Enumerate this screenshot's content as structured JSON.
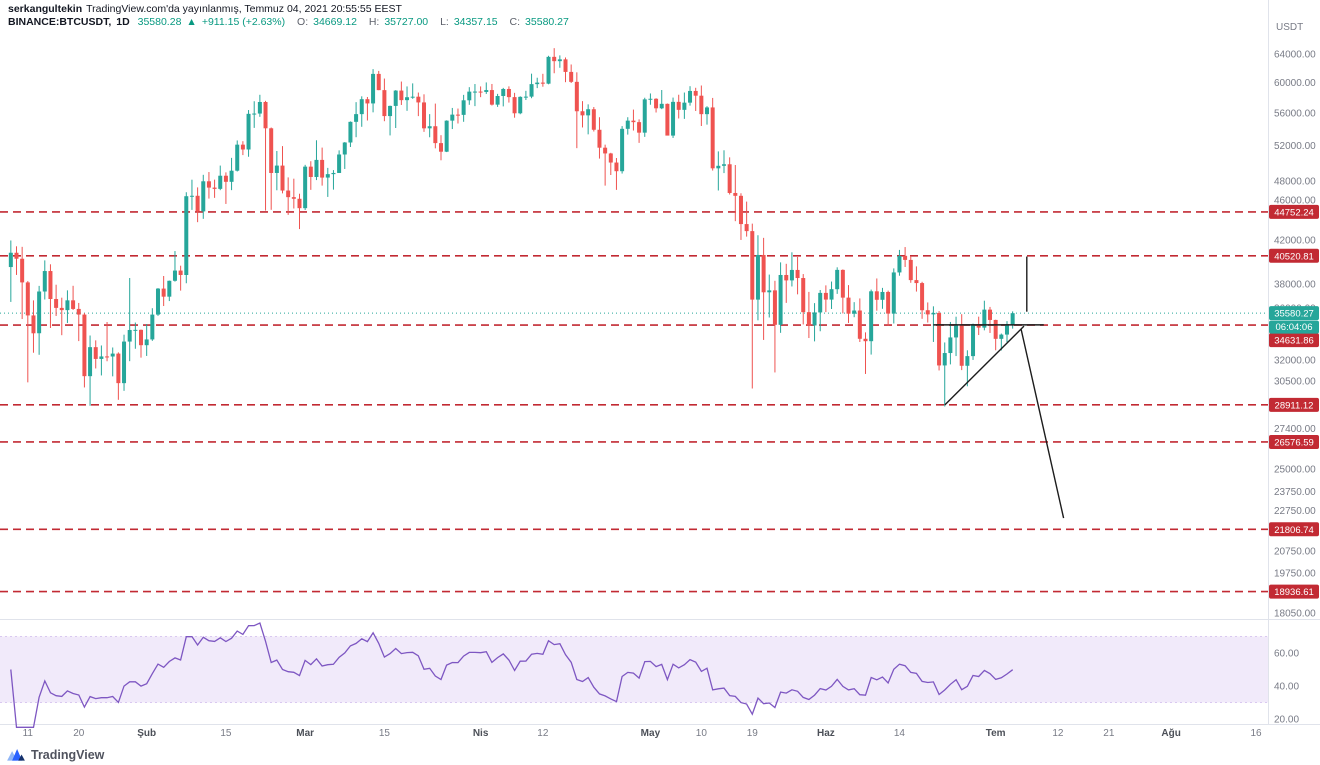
{
  "header": {
    "author": "serkangultekin",
    "published": "TradingView.com'da yayınlanmış, Temmuz 04, 2021 20:55:55 EEST",
    "symbol": "BINANCE:BTCUSDT,",
    "interval": "1D",
    "last_price": "35580.28",
    "arrow": "▲",
    "change": "+911.15 (+2.63%)",
    "ohlc": [
      {
        "label": "O:",
        "value": "34669.12"
      },
      {
        "label": "H:",
        "value": "35727.00"
      },
      {
        "label": "L:",
        "value": "34357.15"
      },
      {
        "label": "C:",
        "value": "35580.27"
      }
    ]
  },
  "footer": {
    "brand": "TradingView"
  },
  "colors": {
    "up": "#26a69a",
    "down": "#ef5350",
    "sr_red": "#c22a33",
    "accent": "#26a69a",
    "rsi": "#7e57c2",
    "rsi_band": "#f1eafa",
    "rsi_band_edge": "#d9c8f0",
    "green_text": "#089981",
    "dark_text": "#131722",
    "muted_text": "#787b86",
    "drawing": "#1c1c1c",
    "grid": "#e0e3eb",
    "brand": "#2962ff"
  },
  "chart_data": {
    "type": "candlestick",
    "symbol": "BINANCE:BTCUSDT",
    "interval": "1D",
    "start_date": "2021-01-08",
    "yscale": "log",
    "ylabel_unit": "USDT",
    "ylim": [
      17900,
      70000
    ],
    "ohlc": [
      [
        39500,
        41950,
        36500,
        40800
      ],
      [
        40800,
        41400,
        38800,
        40250
      ],
      [
        40250,
        41350,
        35111,
        38150
      ],
      [
        38150,
        38264,
        30420,
        35400
      ],
      [
        35400,
        36628,
        32531,
        33995
      ],
      [
        34000,
        37850,
        32380,
        37371
      ],
      [
        37371,
        40100,
        36701,
        39144
      ],
      [
        39144,
        39747,
        34407,
        36742
      ],
      [
        36742,
        37950,
        35357,
        36009
      ],
      [
        36009,
        36852,
        33850,
        35828
      ],
      [
        35828,
        37469,
        34800,
        36631
      ],
      [
        36631,
        37857,
        35844,
        35924
      ],
      [
        35924,
        36415,
        33400,
        35468
      ],
      [
        35468,
        35600,
        30071,
        30850
      ],
      [
        30850,
        33826,
        28850,
        32945
      ],
      [
        32945,
        33456,
        31393,
        32078
      ],
      [
        32078,
        33071,
        30900,
        32259
      ],
      [
        32259,
        34875,
        31910,
        32254
      ],
      [
        32254,
        32921,
        30837,
        32467
      ],
      [
        32467,
        32557,
        29241,
        30366
      ],
      [
        30366,
        33888,
        29842,
        33364
      ],
      [
        33364,
        38531,
        31915,
        34252
      ],
      [
        34252,
        34834,
        32825,
        34262
      ],
      [
        34262,
        34288,
        32171,
        33092
      ],
      [
        33092,
        34717,
        32296,
        33526
      ],
      [
        33526,
        35984,
        33418,
        35466
      ],
      [
        35466,
        37662,
        35362,
        37618
      ],
      [
        37618,
        38708,
        36161,
        36936
      ],
      [
        36936,
        38310,
        36570,
        38290
      ],
      [
        38290,
        40955,
        38215,
        39186
      ],
      [
        39186,
        39621,
        37446,
        38795
      ],
      [
        38795,
        46794,
        38076,
        46374
      ],
      [
        46374,
        48142,
        44961,
        46420
      ],
      [
        46420,
        47310,
        43727,
        44807
      ],
      [
        44807,
        48678,
        44057,
        47969
      ],
      [
        47969,
        48985,
        46125,
        47287
      ],
      [
        47287,
        48150,
        46202,
        47153
      ],
      [
        47153,
        49707,
        47014,
        48577
      ],
      [
        48577,
        48948,
        45570,
        47911
      ],
      [
        47911,
        50584,
        47016,
        49133
      ],
      [
        49133,
        52618,
        49047,
        52119
      ],
      [
        52119,
        52530,
        50901,
        51552
      ],
      [
        51552,
        56370,
        50710,
        55888
      ],
      [
        55888,
        57506,
        54137,
        55923
      ],
      [
        55923,
        58352,
        55507,
        57408
      ],
      [
        57408,
        57557,
        44892,
        54087
      ],
      [
        54087,
        54183,
        44968,
        48880
      ],
      [
        48880,
        51374,
        47004,
        49705
      ],
      [
        49705,
        51948,
        46674,
        46973
      ],
      [
        46973,
        48394,
        44454,
        46276
      ],
      [
        46276,
        48253,
        45101,
        46106
      ],
      [
        46106,
        46638,
        43048,
        45135
      ],
      [
        45135,
        49790,
        44950,
        49587
      ],
      [
        49587,
        50200,
        47047,
        48440
      ],
      [
        48440,
        52640,
        48100,
        50349
      ],
      [
        50349,
        51773,
        47500,
        48374
      ],
      [
        48374,
        49448,
        46300,
        48751
      ],
      [
        48751,
        49200,
        47070,
        48882
      ],
      [
        48882,
        51450,
        48882,
        50971
      ],
      [
        50971,
        52425,
        49328,
        52375
      ],
      [
        52375,
        54936,
        51845,
        54884
      ],
      [
        54884,
        57387,
        53005,
        55851
      ],
      [
        55851,
        58150,
        54272,
        57773
      ],
      [
        57773,
        58063,
        55047,
        57221
      ],
      [
        57221,
        61844,
        56078,
        61178
      ],
      [
        61178,
        61597,
        58966,
        58972
      ],
      [
        58972,
        60540,
        54962,
        55605
      ],
      [
        55605,
        56938,
        53221,
        56900
      ],
      [
        56900,
        58974,
        54123,
        58912
      ],
      [
        58912,
        60129,
        57022,
        57648
      ],
      [
        57648,
        59468,
        56270,
        58030
      ],
      [
        58030,
        59880,
        57820,
        58102
      ],
      [
        58102,
        58650,
        55600,
        57351
      ],
      [
        57351,
        58415,
        53650,
        54083
      ],
      [
        54083,
        55850,
        53000,
        54340
      ],
      [
        54340,
        57200,
        51686,
        52303
      ],
      [
        52303,
        53250,
        50305,
        51293
      ],
      [
        51293,
        55075,
        51250,
        55033
      ],
      [
        55033,
        56639,
        53995,
        55788
      ],
      [
        55788,
        56560,
        54677,
        55757
      ],
      [
        55757,
        58342,
        54890,
        57628
      ],
      [
        57628,
        59368,
        57043,
        58771
      ],
      [
        58771,
        59790,
        56872,
        58779
      ],
      [
        58779,
        59469,
        58038,
        58726
      ],
      [
        58726,
        60009,
        58464,
        58981
      ],
      [
        58981,
        59800,
        56950,
        57062
      ],
      [
        57062,
        58474,
        56776,
        58192
      ],
      [
        58192,
        59272,
        56838,
        59124
      ],
      [
        59124,
        59476,
        57333,
        58044
      ],
      [
        58044,
        58610,
        55400,
        55958
      ],
      [
        55958,
        58150,
        55838,
        58079
      ],
      [
        58079,
        58880,
        57667,
        58108
      ],
      [
        58108,
        61212,
        57900,
        59778
      ],
      [
        59778,
        60650,
        59241,
        59985
      ],
      [
        59985,
        61191,
        59428,
        59839
      ],
      [
        59839,
        63742,
        59756,
        63588
      ],
      [
        63588,
        64854,
        61269,
        62971
      ],
      [
        62971,
        63800,
        62036,
        63229
      ],
      [
        63229,
        63500,
        60040,
        61455
      ],
      [
        61455,
        62500,
        59929,
        60087
      ],
      [
        60087,
        61400,
        51707,
        56216
      ],
      [
        56216,
        57520,
        54188,
        55696
      ],
      [
        55696,
        57100,
        53350,
        56473
      ],
      [
        56473,
        56757,
        53695,
        53906
      ],
      [
        53906,
        55459,
        50500,
        51762
      ],
      [
        51762,
        52120,
        47500,
        51093
      ],
      [
        51093,
        51167,
        48657,
        50050
      ],
      [
        50050,
        50566,
        47044,
        49077
      ],
      [
        49077,
        54356,
        48817,
        54021
      ],
      [
        54021,
        55460,
        53319,
        55033
      ],
      [
        55033,
        56428,
        53813,
        54846
      ],
      [
        54846,
        55195,
        52330,
        53555
      ],
      [
        53555,
        57963,
        53046,
        57750
      ],
      [
        57750,
        58528,
        57052,
        57828
      ],
      [
        57828,
        57902,
        56056,
        56592
      ],
      [
        56592,
        58986,
        56483,
        57169
      ],
      [
        57169,
        57212,
        53244,
        53200
      ],
      [
        53200,
        57984,
        52918,
        57424
      ],
      [
        57424,
        58360,
        55303,
        56396
      ],
      [
        56396,
        58650,
        55253,
        57322
      ],
      [
        57322,
        59500,
        56935,
        58863
      ],
      [
        58863,
        59286,
        56250,
        58232
      ],
      [
        58232,
        59592,
        54370,
        55847
      ],
      [
        55847,
        56862,
        54538,
        56704
      ],
      [
        56704,
        57939,
        49150,
        49398
      ],
      [
        49398,
        51330,
        46980,
        49682
      ],
      [
        49682,
        51459,
        48868,
        49855
      ],
      [
        49855,
        50640,
        46555,
        46716
      ],
      [
        46716,
        49770,
        43825,
        46415
      ],
      [
        46415,
        46686,
        42001,
        43538
      ],
      [
        43538,
        45812,
        42320,
        42849
      ],
      [
        42849,
        43584,
        30000,
        36690
      ],
      [
        36690,
        42451,
        35010,
        40596
      ],
      [
        40596,
        42200,
        33488,
        37304
      ],
      [
        37304,
        38831,
        35233,
        37467
      ],
      [
        37467,
        38289,
        31111,
        34655
      ],
      [
        34655,
        39920,
        34031,
        38796
      ],
      [
        38796,
        39791,
        36419,
        38324
      ],
      [
        38324,
        40841,
        37800,
        39241
      ],
      [
        39241,
        40411,
        37131,
        38529
      ],
      [
        38529,
        38877,
        34684,
        35663
      ],
      [
        35663,
        37338,
        33632,
        34605
      ],
      [
        34605,
        36400,
        33379,
        35641
      ],
      [
        35641,
        37499,
        34153,
        37253
      ],
      [
        37253,
        37894,
        35666,
        36693
      ],
      [
        36693,
        38225,
        35920,
        37568
      ],
      [
        37568,
        39476,
        37170,
        39246
      ],
      [
        39246,
        39289,
        35563,
        36856
      ],
      [
        36856,
        37917,
        34800,
        35538
      ],
      [
        35538,
        36480,
        35258,
        35796
      ],
      [
        35796,
        36790,
        33333,
        33575
      ],
      [
        33575,
        34068,
        31004,
        33393
      ],
      [
        33393,
        37534,
        32396,
        37388
      ],
      [
        37388,
        38491,
        35782,
        36675
      ],
      [
        36675,
        37680,
        35936,
        37332
      ],
      [
        37332,
        37447,
        34600,
        35546
      ],
      [
        35546,
        39380,
        34757,
        39020
      ],
      [
        39020,
        41064,
        38730,
        40516
      ],
      [
        40516,
        41330,
        39506,
        40144
      ],
      [
        40144,
        40500,
        38116,
        38349
      ],
      [
        38349,
        39559,
        37365,
        38092
      ],
      [
        38092,
        38202,
        35129,
        35819
      ],
      [
        35819,
        36457,
        34833,
        35483
      ],
      [
        35483,
        36137,
        33336,
        35600
      ],
      [
        35600,
        35750,
        31251,
        31608
      ],
      [
        31608,
        33298,
        28805,
        32509
      ],
      [
        32509,
        34881,
        31683,
        33678
      ],
      [
        33678,
        35298,
        32286,
        34663
      ],
      [
        34663,
        35500,
        31275,
        31584
      ],
      [
        31584,
        32711,
        30151,
        32283
      ],
      [
        32283,
        34749,
        32006,
        34700
      ],
      [
        34700,
        35301,
        33862,
        34434
      ],
      [
        34434,
        36600,
        34225,
        35867
      ],
      [
        35867,
        36088,
        34021,
        35040
      ],
      [
        35040,
        35057,
        32711,
        33572
      ],
      [
        33572,
        33977,
        32699,
        33897
      ],
      [
        33897,
        34945,
        33316,
        34668
      ],
      [
        34669,
        35727,
        34357,
        35580
      ]
    ],
    "indicator": {
      "name": "RSI",
      "period": 14,
      "upper_band": 70,
      "lower_band": 30
    },
    "levels": [
      44752.24,
      40520.81,
      34631.86,
      28911.12,
      26576.59,
      21806.74,
      18936.61
    ],
    "current_price": 35580.27,
    "countdown": "06:04:06",
    "price_ticks": [
      64000,
      60000,
      56000,
      52000,
      48000,
      46000,
      42000,
      38000,
      36000,
      32000,
      30500,
      27400,
      25000,
      23750,
      22750,
      20750,
      19750,
      18050
    ],
    "rsi_ticks": [
      60,
      40,
      20
    ],
    "time_ticks": [
      {
        "l": "11",
        "i": 3
      },
      {
        "l": "20",
        "i": 12
      },
      {
        "l": "Şub",
        "i": 24
      },
      {
        "l": "15",
        "i": 38
      },
      {
        "l": "Mar",
        "i": 52
      },
      {
        "l": "15",
        "i": 66
      },
      {
        "l": "Nis",
        "i": 83
      },
      {
        "l": "12",
        "i": 94
      },
      {
        "l": "May",
        "i": 113
      },
      {
        "l": "10",
        "i": 122
      },
      {
        "l": "19",
        "i": 131
      },
      {
        "l": "Haz",
        "i": 144
      },
      {
        "l": "14",
        "i": 157
      },
      {
        "l": "Tem",
        "i": 174
      },
      {
        "l": "12",
        "i": 185
      },
      {
        "l": "21",
        "i": 194
      },
      {
        "l": "Ağu",
        "i": 205
      },
      {
        "l": "16",
        "i": 220
      }
    ],
    "drawings": [
      {
        "name": "rising-support-trendline",
        "from": {
          "i": 165,
          "p": 28900
        },
        "to": {
          "i": 179,
          "p": 34550
        }
      },
      {
        "name": "flat-resistance-line",
        "from": {
          "i": 163,
          "p": 34650
        },
        "to": {
          "i": 182.5,
          "p": 34650
        }
      },
      {
        "name": "breakout-target-line",
        "from": {
          "i": 179.5,
          "p": 35700
        },
        "to": {
          "i": 179.5,
          "p": 40450
        }
      },
      {
        "name": "breakdown-path-line",
        "from": {
          "i": 178.5,
          "p": 34300
        },
        "to": {
          "i": 186,
          "p": 22370
        }
      }
    ]
  }
}
